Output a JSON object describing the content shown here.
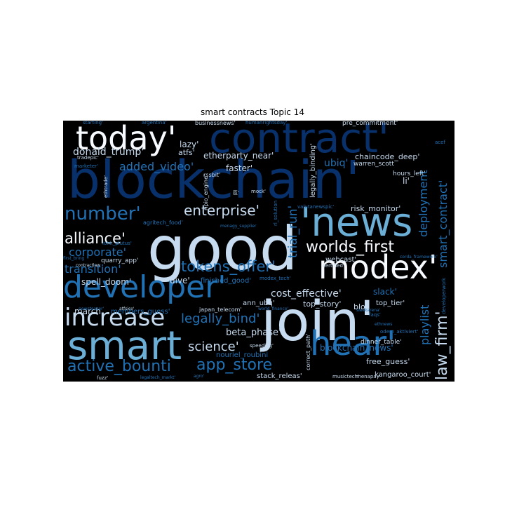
{
  "title": "smart contracts Topic 14",
  "palette": {
    "background": "#000000",
    "dark_blue": "#08306b",
    "mid_blue": "#2171b5",
    "light_blue": "#6baed6",
    "pale_blue": "#c6dbef",
    "white": "#f7fbff"
  },
  "words": [
    {
      "text": "blockchain'",
      "color": "#08306b",
      "weight": 1.0
    },
    {
      "text": "good",
      "color": "#c6dbef",
      "weight": 0.95
    },
    {
      "text": "join'",
      "color": "#c6dbef",
      "weight": 0.9
    },
    {
      "text": "contract'",
      "color": "#08306b",
      "weight": 0.75
    },
    {
      "text": "'news",
      "color": "#6baed6",
      "weight": 0.7
    },
    {
      "text": "smart",
      "color": "#6baed6",
      "weight": 0.65
    },
    {
      "text": "developer'",
      "color": "#2171b5",
      "weight": 0.55
    },
    {
      "text": "modex'",
      "color": "#f7fbff",
      "weight": 0.55
    },
    {
      "text": "today'",
      "color": "#f7fbff",
      "weight": 0.55
    },
    {
      "text": "hear'",
      "color": "#2171b5",
      "weight": 0.55
    },
    {
      "text": "increase",
      "color": "#c6dbef",
      "weight": 0.45
    },
    {
      "text": "number'",
      "color": "#2171b5",
      "weight": 0.35
    },
    {
      "text": "tokens_offer'",
      "color": "#2171b5",
      "weight": 0.3
    },
    {
      "text": "worlds_first",
      "color": "#f7fbff",
      "weight": 0.3
    },
    {
      "text": "enterprise'",
      "color": "#c6dbef",
      "weight": 0.3
    },
    {
      "text": "active_bounti",
      "color": "#2171b5",
      "weight": 0.3
    },
    {
      "text": "app_store",
      "color": "#2171b5",
      "weight": 0.3
    },
    {
      "text": "alliance'",
      "color": "#f7fbff",
      "weight": 0.25
    },
    {
      "text": "law_firm'",
      "color": "#c6dbef",
      "weight": 0.25
    },
    {
      "text": "legally_bind'",
      "color": "#2171b5",
      "weight": 0.22
    },
    {
      "text": "corporate'",
      "color": "#2171b5",
      "weight": 0.22
    },
    {
      "text": "transition'",
      "color": "#2171b5",
      "weight": 0.22
    },
    {
      "text": "science'",
      "color": "#c6dbef",
      "weight": 0.22
    },
    {
      "text": "smart_contract'",
      "color": "#2171b5",
      "weight": 0.22
    },
    {
      "text": "deployment",
      "color": "#2171b5",
      "weight": 0.22
    },
    {
      "text": "playlist",
      "color": "#2171b5",
      "weight": 0.22
    },
    {
      "text": "added_video'",
      "color": "#2171b5",
      "weight": 0.2
    },
    {
      "text": "trial_run'",
      "color": "#2171b5",
      "weight": 0.2
    },
    {
      "text": "donald_trump'",
      "color": "#c6dbef",
      "weight": 0.18
    },
    {
      "text": "ubiq'",
      "color": "#2171b5",
      "weight": 0.18
    },
    {
      "text": "cost_effective'",
      "color": "#c6dbef",
      "weight": 0.18
    },
    {
      "text": "beta_phase'",
      "color": "#c6dbef",
      "weight": 0.18
    },
    {
      "text": "spell_doom'",
      "color": "#c6dbef",
      "weight": 0.15
    },
    {
      "text": "dive'",
      "color": "#c6dbef",
      "weight": 0.15
    },
    {
      "text": "faster'",
      "color": "#c6dbef",
      "weight": 0.15
    },
    {
      "text": "risk_monitor'",
      "color": "#c6dbef",
      "weight": 0.15
    },
    {
      "text": "etherparty_near'",
      "color": "#c6dbef",
      "weight": 0.15
    },
    {
      "text": "chaincode_deep'",
      "color": "#c6dbef",
      "weight": 0.14
    },
    {
      "text": "free_guess'",
      "color": "#c6dbef",
      "weight": 0.14
    },
    {
      "text": "lazy'",
      "color": "#c6dbef",
      "weight": 0.13
    },
    {
      "text": "march",
      "color": "#c6dbef",
      "weight": 0.13
    },
    {
      "text": "slack'",
      "color": "#2171b5",
      "weight": 0.13
    },
    {
      "text": "blockchain_news'",
      "color": "#2171b5",
      "weight": 0.13
    },
    {
      "text": "li'",
      "color": "#c6dbef",
      "weight": 0.13
    },
    {
      "text": "atfs'",
      "color": "#c6dbef",
      "weight": 0.12
    },
    {
      "text": "top_story'",
      "color": "#c6dbef",
      "weight": 0.12
    },
    {
      "text": "ann_ubq'",
      "color": "#c6dbef",
      "weight": 0.12
    },
    {
      "text": "blo'",
      "color": "#c6dbef",
      "weight": 0.12
    },
    {
      "text": "top_tier'",
      "color": "#c6dbef",
      "weight": 0.1
    },
    {
      "text": "webcast'",
      "color": "#c6dbef",
      "weight": 0.1
    },
    {
      "text": "kangaroo_court'",
      "color": "#c6dbef",
      "weight": 0.1
    },
    {
      "text": "stack_releas'",
      "color": "#c6dbef",
      "weight": 0.1
    },
    {
      "text": "nouriel_roubini",
      "color": "#2171b5",
      "weight": 0.1
    },
    {
      "text": "finished_good'",
      "color": "#2171b5",
      "weight": 0.1
    },
    {
      "text": "legally_binding'",
      "color": "#c6dbef",
      "weight": 0.1
    },
    {
      "text": "members_guess'",
      "color": "#2171b5",
      "weight": 0.1
    },
    {
      "text": "warren_scott",
      "color": "#c6dbef",
      "weight": 0.09
    },
    {
      "text": "hours_left'",
      "color": "#c6dbef",
      "weight": 0.09
    },
    {
      "text": "pre_commitment'",
      "color": "#c6dbef",
      "weight": 0.09
    },
    {
      "text": "businessnews'",
      "color": "#c6dbef",
      "weight": 0.09
    },
    {
      "text": "quarry_app'",
      "color": "#c6dbef",
      "weight": 0.09
    },
    {
      "text": "dinner_table'",
      "color": "#c6dbef",
      "weight": 0.09
    },
    {
      "text": "agritech_food'",
      "color": "#2171b5",
      "weight": 0.09
    },
    {
      "text": "japan_telecom'",
      "color": "#c6dbef",
      "weight": 0.09
    },
    {
      "text": "correct_path'",
      "color": "#c6dbef",
      "weight": 0.09
    },
    {
      "text": "ripio_engine'",
      "color": "#c6dbef",
      "weight": 0.09
    },
    {
      "text": "rssbit'",
      "color": "#c6dbef",
      "weight": 0.08
    },
    {
      "text": "speeding'",
      "color": "#c6dbef",
      "weight": 0.08
    },
    {
      "text": "musictech'",
      "color": "#c6dbef",
      "weight": 0.08
    },
    {
      "text": "menapay'",
      "color": "#c6dbef",
      "weight": 0.08
    },
    {
      "text": "certified'",
      "color": "#c6dbef",
      "weight": 0.08
    },
    {
      "text": "mock'",
      "color": "#c6dbef",
      "weight": 0.08
    },
    {
      "text": "iohk_plutus'",
      "color": "#2171b5",
      "weight": 0.08
    },
    {
      "text": "modex_tech'",
      "color": "#2171b5",
      "weight": 0.08
    },
    {
      "text": "valutanewspic'",
      "color": "#2171b5",
      "weight": 0.08
    },
    {
      "text": "ethtrade'",
      "color": "#c6dbef",
      "weight": 0.07
    },
    {
      "text": "tradepic'",
      "color": "#c6dbef",
      "weight": 0.07
    },
    {
      "text": "marketer'",
      "color": "#2171b5",
      "weight": 0.07
    },
    {
      "text": "contractlaw",
      "color": "#c6dbef",
      "weight": 0.07
    },
    {
      "text": "newsteaser'",
      "color": "#2171b5",
      "weight": 0.07
    },
    {
      "text": "atfsico'",
      "color": "#c6dbef",
      "weight": 0.07
    },
    {
      "text": "fuzz'",
      "color": "#c6dbef",
      "weight": 0.07
    },
    {
      "text": "legaltech_markt'",
      "color": "#2171b5",
      "weight": 0.07
    },
    {
      "text": "agro'",
      "color": "#2171b5",
      "weight": 0.07
    },
    {
      "text": "faqs'",
      "color": "#2171b5",
      "weight": 0.07
    },
    {
      "text": "ethnews",
      "color": "#2171b5",
      "weight": 0.07
    },
    {
      "text": "odem_aktiviert'",
      "color": "#2171b5",
      "weight": 0.07
    },
    {
      "text": "sleekarena'",
      "color": "#2171b5",
      "weight": 0.07
    },
    {
      "text": "world_finance'",
      "color": "#2171b5",
      "weight": 0.07
    },
    {
      "text": "developerwork",
      "color": "#2171b5",
      "weight": 0.07
    },
    {
      "text": "corda_framework'",
      "color": "#2171b5",
      "weight": 0.07
    },
    {
      "text": "starting'",
      "color": "#2171b5",
      "weight": 0.07
    },
    {
      "text": "argentina'",
      "color": "#2171b5",
      "weight": 0.07
    },
    {
      "text": "humanrightsday'",
      "color": "#2171b5",
      "weight": 0.07
    },
    {
      "text": "acef",
      "color": "#2171b5",
      "weight": 0.07
    },
    {
      "text": "menagy_supplier",
      "color": "#2171b5",
      "weight": 0.07
    },
    {
      "text": "rl_solution",
      "color": "#2171b5",
      "weight": 0.07
    },
    {
      "text": "first_bring",
      "color": "#2171b5",
      "weight": 0.07
    },
    {
      "text": "區'",
      "color": "#c6dbef",
      "weight": 0.07
    }
  ]
}
